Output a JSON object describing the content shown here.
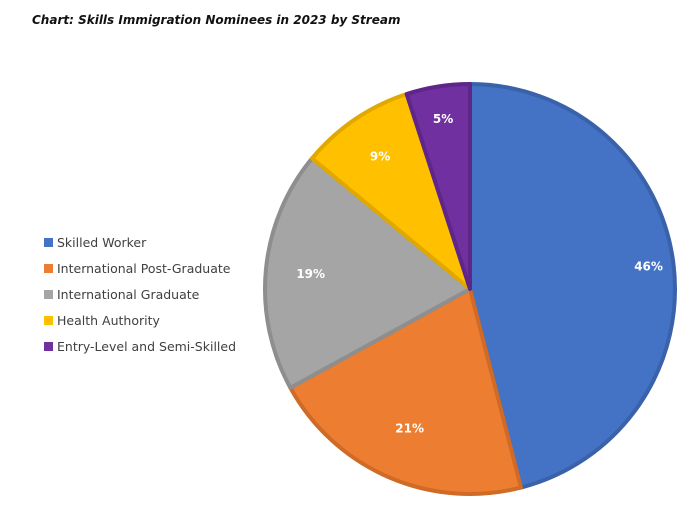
{
  "chart_data": {
    "type": "pie",
    "title": "Chart: Skills Immigration Nominees in 2023 by Stream",
    "categories": [
      "Skilled Worker",
      "International Post-Graduate",
      "International Graduate",
      "Health Authority",
      "Entry-Level and Semi-Skilled"
    ],
    "values": [
      46,
      21,
      19,
      9,
      5
    ],
    "data_labels": [
      "46%",
      "21%",
      "19%",
      "9%",
      "5%"
    ],
    "colors": [
      "#4472C4",
      "#ED7D31",
      "#A5A5A5",
      "#FFC000",
      "#7030A0"
    ],
    "border_colors": [
      "#3A62AA",
      "#D06B27",
      "#8E8E8E",
      "#E0A800",
      "#5E2688"
    ],
    "legend_position": "left"
  }
}
